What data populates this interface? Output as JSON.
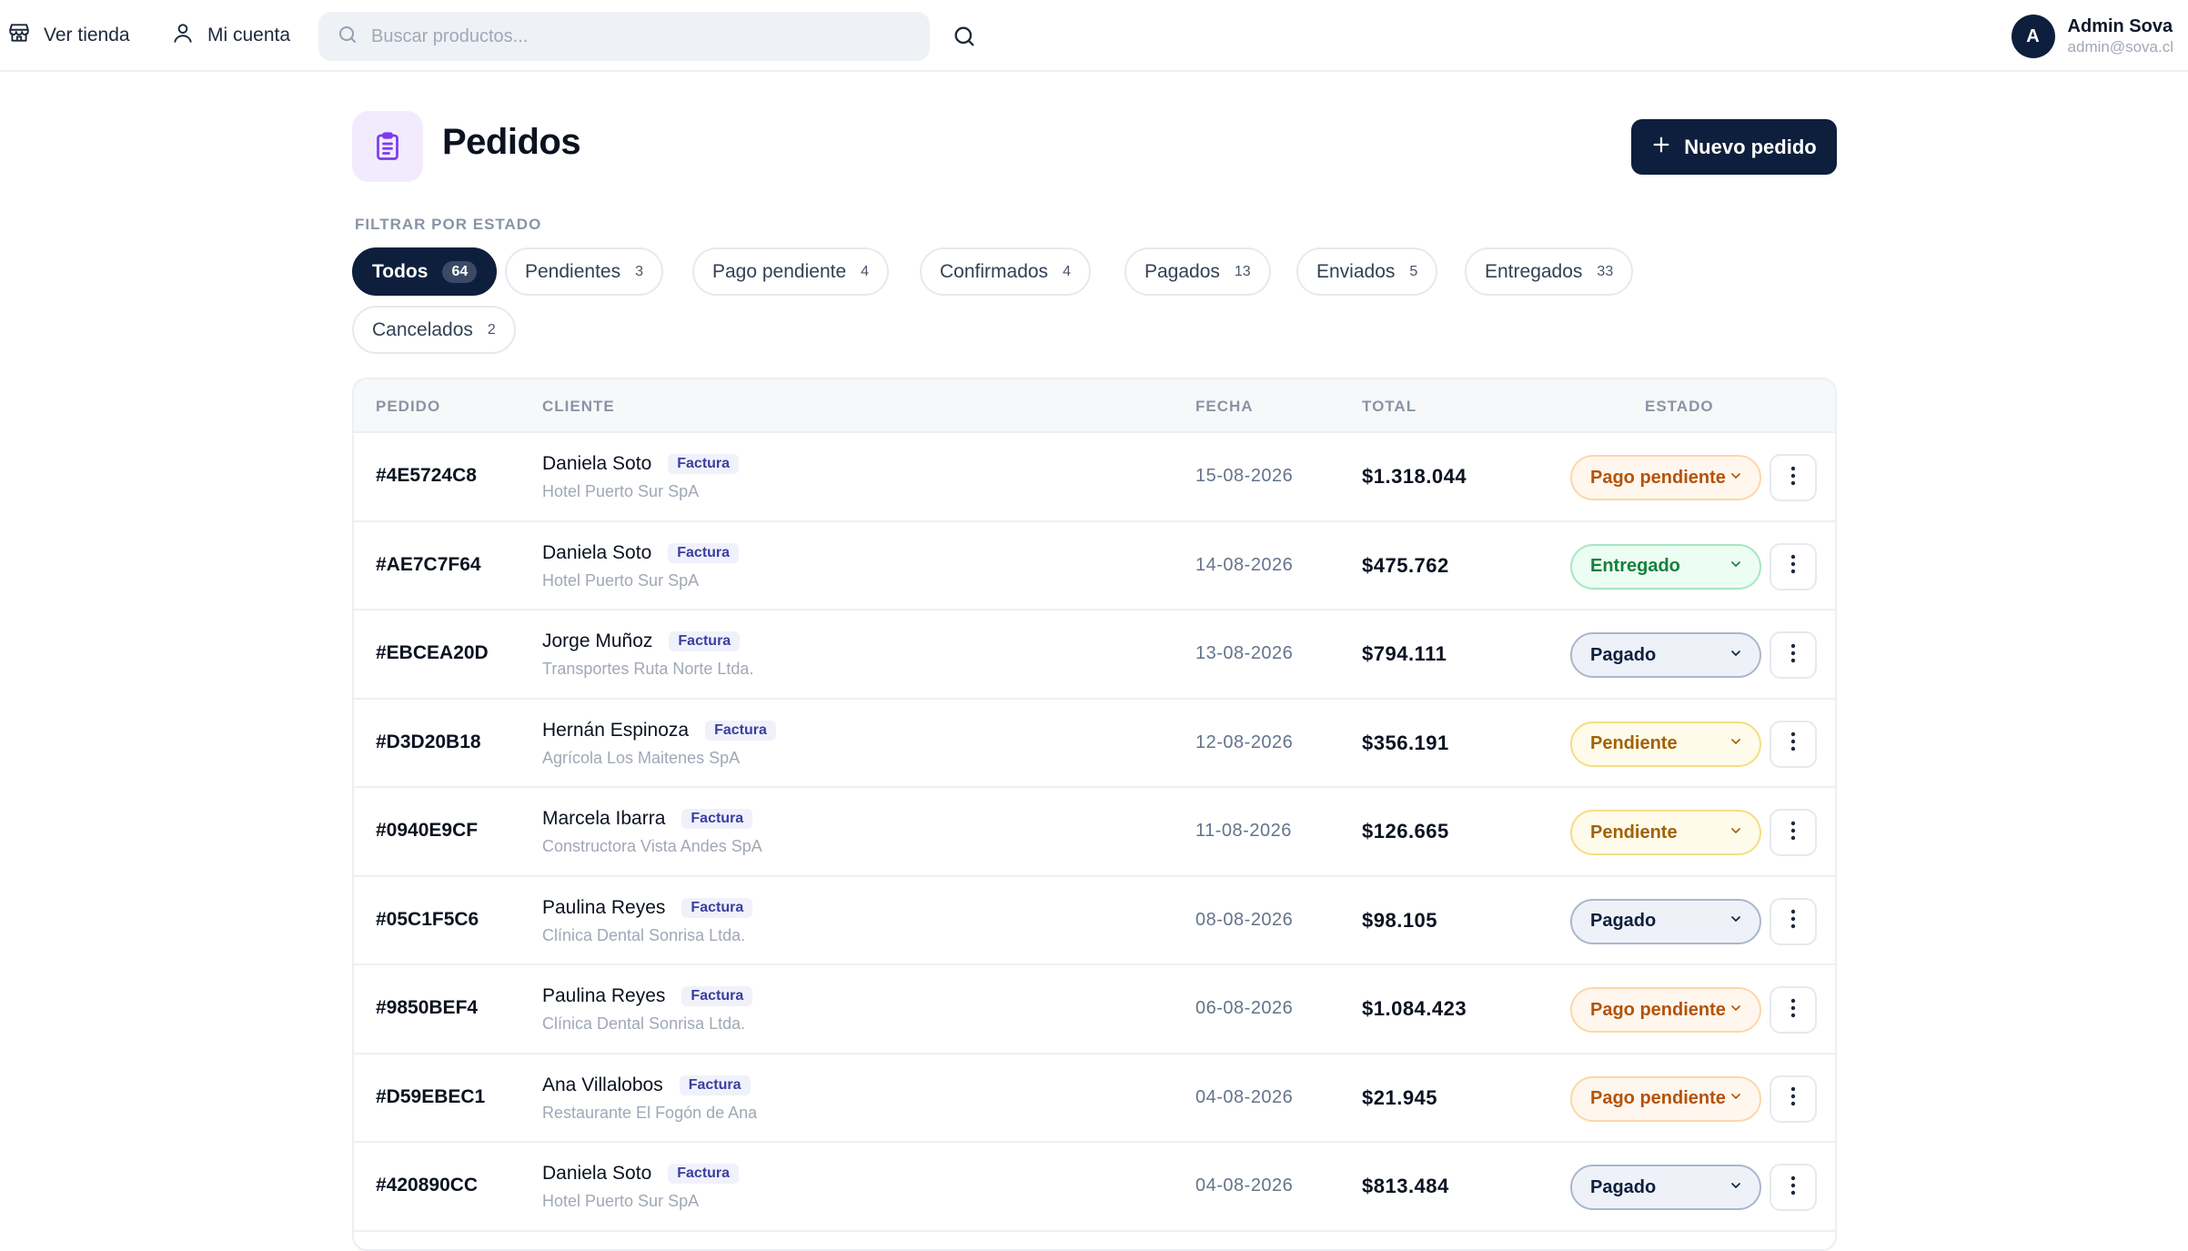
{
  "topbar": {
    "store_link": "Ver tienda",
    "account_link": "Mi cuenta",
    "search_placeholder": "Buscar productos...",
    "user": {
      "initial": "A",
      "name": "Admin Sova",
      "email": "admin@sova.cl"
    }
  },
  "page": {
    "title": "Pedidos",
    "new_button": "Nuevo pedido"
  },
  "filters": {
    "title": "FILTRAR POR ESTADO",
    "items": [
      {
        "label": "Todos",
        "count": "64"
      },
      {
        "label": "Pendientes",
        "count": "3"
      },
      {
        "label": "Pago pendiente",
        "count": "4"
      },
      {
        "label": "Confirmados",
        "count": "4"
      },
      {
        "label": "Pagados",
        "count": "13"
      },
      {
        "label": "Enviados",
        "count": "5"
      },
      {
        "label": "Entregados",
        "count": "33"
      },
      {
        "label": "Cancelados",
        "count": "2"
      }
    ]
  },
  "table": {
    "headers": {
      "id": "PEDIDO",
      "client": "CLIENTE",
      "date": "FECHA",
      "total": "TOTAL",
      "status": "ESTADO"
    },
    "rows": [
      {
        "id": "#4E5724C8",
        "client": "Daniela Soto",
        "tag": "Factura",
        "company": "Hotel Puerto Sur SpA",
        "date": "15-08-2026",
        "total": "$1.318.044",
        "status": "Pago pendiente",
        "status_key": "pago-pendiente"
      },
      {
        "id": "#AE7C7F64",
        "client": "Daniela Soto",
        "tag": "Factura",
        "company": "Hotel Puerto Sur SpA",
        "date": "14-08-2026",
        "total": "$475.762",
        "status": "Entregado",
        "status_key": "entregado"
      },
      {
        "id": "#EBCEA20D",
        "client": "Jorge Muñoz",
        "tag": "Factura",
        "company": "Transportes Ruta Norte Ltda.",
        "date": "13-08-2026",
        "total": "$794.111",
        "status": "Pagado",
        "status_key": "pagado"
      },
      {
        "id": "#D3D20B18",
        "client": "Hernán Espinoza",
        "tag": "Factura",
        "company": "Agrícola Los Maitenes SpA",
        "date": "12-08-2026",
        "total": "$356.191",
        "status": "Pendiente",
        "status_key": "pendiente"
      },
      {
        "id": "#0940E9CF",
        "client": "Marcela Ibarra",
        "tag": "Factura",
        "company": "Constructora Vista Andes SpA",
        "date": "11-08-2026",
        "total": "$126.665",
        "status": "Pendiente",
        "status_key": "pendiente"
      },
      {
        "id": "#05C1F5C6",
        "client": "Paulina Reyes",
        "tag": "Factura",
        "company": "Clínica Dental Sonrisa Ltda.",
        "date": "08-08-2026",
        "total": "$98.105",
        "status": "Pagado",
        "status_key": "pagado"
      },
      {
        "id": "#9850BEF4",
        "client": "Paulina Reyes",
        "tag": "Factura",
        "company": "Clínica Dental Sonrisa Ltda.",
        "date": "06-08-2026",
        "total": "$1.084.423",
        "status": "Pago pendiente",
        "status_key": "pago-pendiente"
      },
      {
        "id": "#D59EBEC1",
        "client": "Ana Villalobos",
        "tag": "Factura",
        "company": "Restaurante El Fogón de Ana",
        "date": "04-08-2026",
        "total": "$21.945",
        "status": "Pago pendiente",
        "status_key": "pago-pendiente"
      },
      {
        "id": "#420890CC",
        "client": "Daniela Soto",
        "tag": "Factura",
        "company": "Hotel Puerto Sur SpA",
        "date": "04-08-2026",
        "total": "$813.484",
        "status": "Pagado",
        "status_key": "pagado"
      }
    ]
  }
}
